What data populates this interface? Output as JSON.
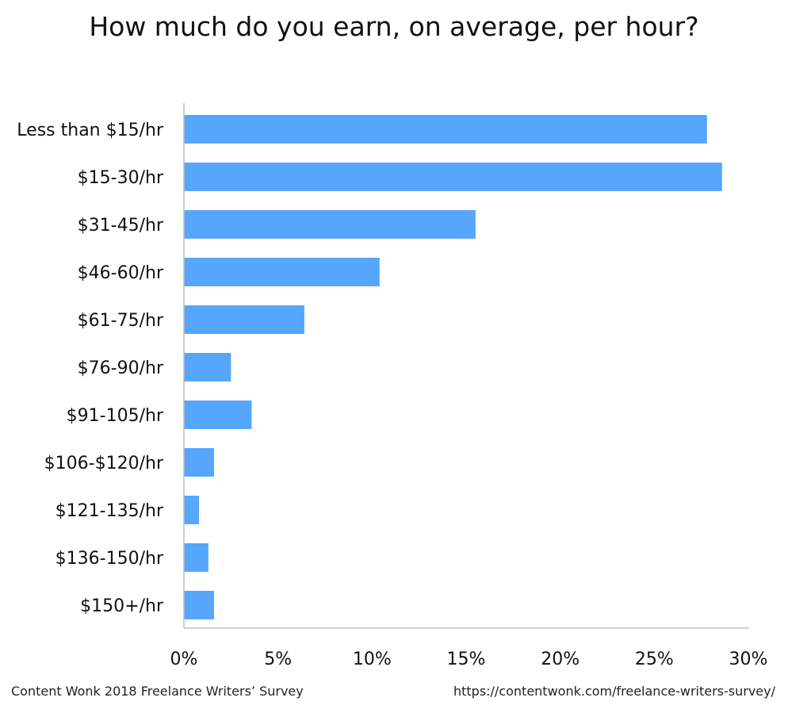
{
  "chart_data": {
    "type": "bar",
    "orientation": "horizontal",
    "title": "How much do you earn, on average, per hour?",
    "categories": [
      "Less than $15/hr",
      "$15-30/hr",
      "$31-45/hr",
      "$46-60/hr",
      "$61-75/hr",
      "$76-90/hr",
      "$91-105/hr",
      "$106-$120/hr",
      "$121-135/hr",
      "$136-150/hr",
      "$150+/hr"
    ],
    "values": [
      27.8,
      28.6,
      15.5,
      10.4,
      6.4,
      2.5,
      3.6,
      1.6,
      0.8,
      1.3,
      1.6
    ],
    "xlim": [
      0,
      30
    ],
    "xticks": [
      0,
      5,
      10,
      15,
      20,
      25,
      30
    ],
    "tick_labels": [
      "0%",
      "5%",
      "10%",
      "15%",
      "20%",
      "25%",
      "30%"
    ],
    "xlabel": "",
    "ylabel": "",
    "grid": false,
    "bar_color": "#55a6fc"
  },
  "footer": {
    "source": "Content Wonk 2018 Freelance Writers’ Survey",
    "url": "https://contentwonk.com/freelance-writers-survey/"
  }
}
